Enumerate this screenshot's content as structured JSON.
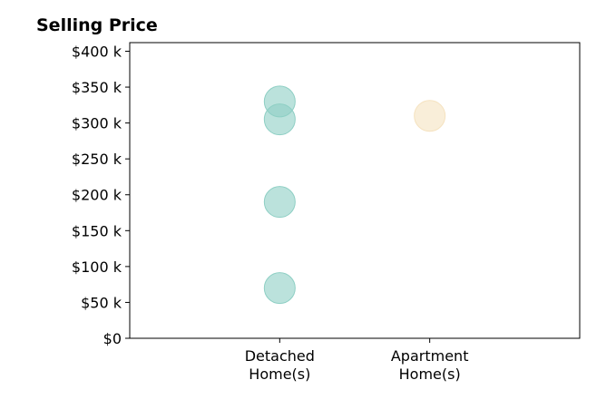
{
  "chart_data": {
    "type": "scatter",
    "title": "Selling Price",
    "xlabel": "",
    "ylabel": "",
    "categories": [
      "Detached\nHome(s)",
      "Apartment\nHome(s)"
    ],
    "xlim": [
      0,
      3
    ],
    "ylim": [
      0,
      412
    ],
    "yticks": [
      0,
      50,
      100,
      150,
      200,
      250,
      300,
      350,
      400
    ],
    "ytick_labels": [
      "$0",
      "$50 k",
      "$100 k",
      "$150 k",
      "$200 k",
      "$250 k",
      "$300 k",
      "$350 k",
      "$400 k"
    ],
    "grid": false,
    "legend": "none",
    "series": [
      {
        "category": "Detached\nHome(s)",
        "x": 1,
        "color": "#8ecfc4",
        "values": [
          330,
          305,
          190,
          70
        ]
      },
      {
        "category": "Apartment\nHome(s)",
        "x": 2,
        "color": "#f5e2bf",
        "values": [
          310
        ]
      }
    ]
  }
}
